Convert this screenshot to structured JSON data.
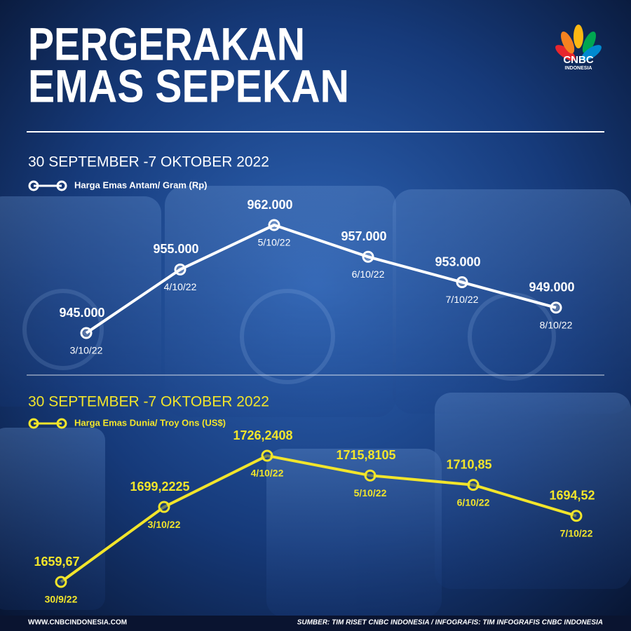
{
  "header": {
    "title_lines": [
      "PERGERAKAN",
      "EMAS SEPEKAN"
    ],
    "logo": "CNBC",
    "logo_sub": "INDONESIA"
  },
  "chart_data": [
    {
      "type": "line",
      "subtitle": "30 SEPTEMBER -7 OKTOBER 2022",
      "categories": [
        "3/10/22",
        "4/10/22",
        "5/10/22",
        "6/10/22",
        "7/10/22",
        "8/10/22"
      ],
      "series": [
        {
          "name": "Harga Emas Antam/ Gram (Rp)",
          "color": "#ffffff",
          "values": [
            945000,
            955000,
            962000,
            957000,
            953000,
            949000
          ],
          "value_labels": [
            "945.000",
            "955.000",
            "962.000",
            "957.000",
            "953.000",
            "949.000"
          ]
        }
      ]
    },
    {
      "type": "line",
      "subtitle": "30 SEPTEMBER -7 OKTOBER 2022",
      "categories": [
        "30/9/22",
        "3/10/22",
        "4/10/22",
        "5/10/22",
        "6/10/22",
        "7/10/22"
      ],
      "series": [
        {
          "name": "Harga Emas Dunia/ Troy Ons (US$)",
          "color": "#f2e52b",
          "values": [
            1659.67,
            1699.2225,
            1726.2408,
            1715.8105,
            1710.85,
            1694.52
          ],
          "value_labels": [
            "1659,67",
            "1699,2225",
            "1726,2408",
            "1715,8105",
            "1710,85",
            "1694,52"
          ]
        }
      ]
    }
  ],
  "footer": {
    "website": "WWW.CNBCINDONESIA.COM",
    "source": "SUMBER: TIM RISET CNBC INDONESIA / INFOGRAFIS: TIM INFOGRAFIS CNBC INDONESIA"
  }
}
